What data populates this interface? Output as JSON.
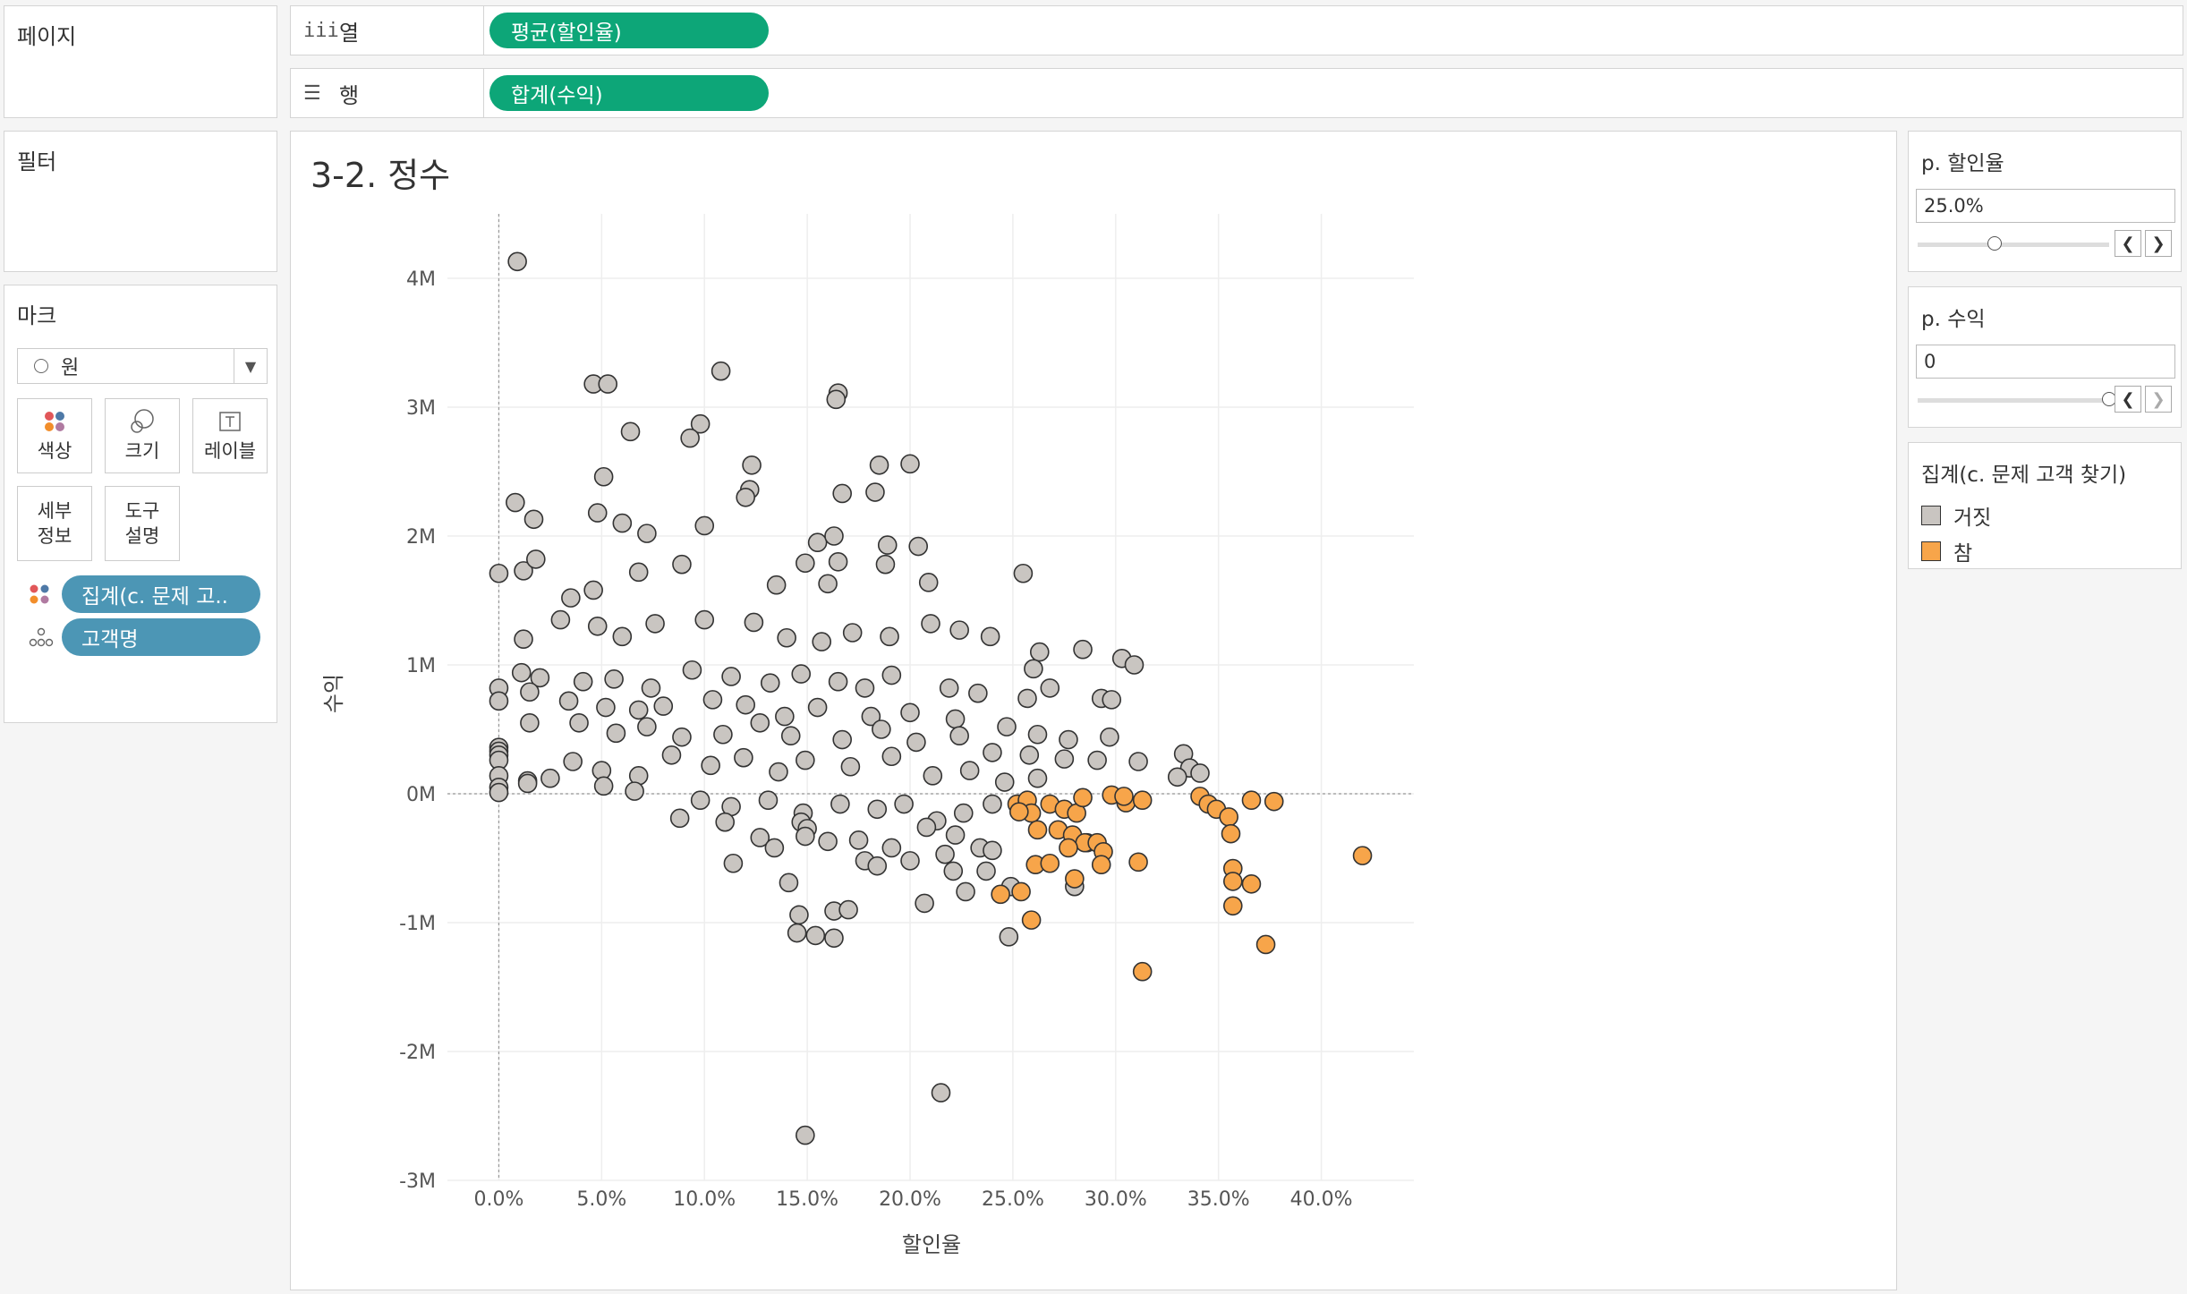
{
  "pages": {
    "title": "페이지"
  },
  "filters": {
    "title": "필터"
  },
  "shelves": {
    "columns": {
      "label": "열",
      "icon": "columns-icon",
      "pill": "평균(할인율)"
    },
    "rows": {
      "label": "행",
      "icon": "rows-icon",
      "pill": "합계(수익)"
    }
  },
  "marks": {
    "title": "마크",
    "type": "원",
    "buttons": {
      "color": "색상",
      "size": "크기",
      "label": "레이블",
      "detail_1": "세부",
      "detail_2": "정보",
      "tooltip_1": "도구",
      "tooltip_2": "설명"
    },
    "pills": [
      {
        "label": "집계(c. 문제 고..",
        "icon": "color-dots-icon"
      },
      {
        "label": "고객명",
        "icon": "detail-dots-icon"
      }
    ]
  },
  "params": [
    {
      "title": "p. 할인율",
      "value": "25.0%",
      "level": 0.4
    },
    {
      "title": "p. 수익",
      "value": "0",
      "level": 1.0
    }
  ],
  "legend": {
    "title": "집계(c. 문제 고객 찾기)",
    "items": [
      {
        "label": "거짓",
        "color": "#c9c5c1"
      },
      {
        "label": "참",
        "color": "#f7a54a"
      }
    ]
  },
  "chart_data": {
    "type": "scatter",
    "title": "3-2. 정수",
    "xlabel": "할인율",
    "ylabel": "수익",
    "xlim": [
      -0.025,
      0.445
    ],
    "ylim": [
      -3.0,
      4.5
    ],
    "xticks": [
      "0.0%",
      "5.0%",
      "10.0%",
      "15.0%",
      "20.0%",
      "25.0%",
      "30.0%",
      "35.0%",
      "40.0%"
    ],
    "xtick_values": [
      0,
      0.05,
      0.1,
      0.15,
      0.2,
      0.25,
      0.3,
      0.35,
      0.4
    ],
    "yticks": [
      "4M",
      "3M",
      "2M",
      "1M",
      "0M",
      "-1M",
      "-2M",
      "-3M"
    ],
    "ytick_values": [
      4,
      3,
      2,
      1,
      0,
      -1,
      -2,
      -3
    ],
    "grid": true,
    "reference_lines": {
      "x": 0,
      "y": 0
    },
    "series": [
      {
        "name": "거짓",
        "color": "#c9c5c1",
        "points": [
          [
            0.009,
            4.13
          ],
          [
            0.108,
            3.28
          ],
          [
            0.046,
            3.18
          ],
          [
            0.053,
            3.18
          ],
          [
            0.165,
            3.11
          ],
          [
            0.164,
            3.06
          ],
          [
            0.098,
            2.87
          ],
          [
            0.093,
            2.76
          ],
          [
            0.064,
            2.81
          ],
          [
            0.2,
            2.56
          ],
          [
            0.123,
            2.55
          ],
          [
            0.185,
            2.55
          ],
          [
            0.051,
            2.46
          ],
          [
            0.122,
            2.36
          ],
          [
            0.12,
            2.3
          ],
          [
            0.167,
            2.33
          ],
          [
            0.183,
            2.34
          ],
          [
            0.008,
            2.26
          ],
          [
            0.017,
            2.13
          ],
          [
            0.048,
            2.18
          ],
          [
            0.06,
            2.1
          ],
          [
            0.072,
            2.02
          ],
          [
            0.1,
            2.08
          ],
          [
            0.155,
            1.95
          ],
          [
            0.163,
            2.0
          ],
          [
            0.189,
            1.93
          ],
          [
            0.204,
            1.92
          ],
          [
            0.165,
            1.8
          ],
          [
            0.188,
            1.78
          ],
          [
            0.255,
            1.71
          ],
          [
            0.0,
            1.71
          ],
          [
            0.012,
            1.73
          ],
          [
            0.018,
            1.82
          ],
          [
            0.035,
            1.52
          ],
          [
            0.046,
            1.58
          ],
          [
            0.068,
            1.72
          ],
          [
            0.089,
            1.78
          ],
          [
            0.135,
            1.62
          ],
          [
            0.149,
            1.79
          ],
          [
            0.16,
            1.63
          ],
          [
            0.209,
            1.64
          ],
          [
            0.012,
            1.2
          ],
          [
            0.03,
            1.35
          ],
          [
            0.048,
            1.3
          ],
          [
            0.06,
            1.22
          ],
          [
            0.076,
            1.32
          ],
          [
            0.1,
            1.35
          ],
          [
            0.124,
            1.33
          ],
          [
            0.14,
            1.21
          ],
          [
            0.157,
            1.18
          ],
          [
            0.172,
            1.25
          ],
          [
            0.19,
            1.22
          ],
          [
            0.21,
            1.32
          ],
          [
            0.224,
            1.27
          ],
          [
            0.239,
            1.22
          ],
          [
            0.263,
            1.1
          ],
          [
            0.284,
            1.12
          ],
          [
            0.303,
            1.05
          ],
          [
            0.309,
            1.0
          ],
          [
            0.26,
            0.97
          ],
          [
            0.011,
            0.94
          ],
          [
            0.02,
            0.9
          ],
          [
            0.041,
            0.87
          ],
          [
            0.056,
            0.89
          ],
          [
            0.074,
            0.82
          ],
          [
            0.094,
            0.96
          ],
          [
            0.113,
            0.91
          ],
          [
            0.132,
            0.86
          ],
          [
            0.147,
            0.93
          ],
          [
            0.165,
            0.87
          ],
          [
            0.178,
            0.82
          ],
          [
            0.191,
            0.92
          ],
          [
            0.219,
            0.82
          ],
          [
            0.233,
            0.78
          ],
          [
            0.257,
            0.74
          ],
          [
            0.268,
            0.82
          ],
          [
            0.293,
            0.74
          ],
          [
            0.298,
            0.73
          ],
          [
            0.0,
            0.82
          ],
          [
            0.0,
            0.72
          ],
          [
            0.015,
            0.79
          ],
          [
            0.034,
            0.72
          ],
          [
            0.052,
            0.67
          ],
          [
            0.068,
            0.65
          ],
          [
            0.08,
            0.68
          ],
          [
            0.104,
            0.73
          ],
          [
            0.12,
            0.69
          ],
          [
            0.139,
            0.6
          ],
          [
            0.155,
            0.67
          ],
          [
            0.181,
            0.6
          ],
          [
            0.2,
            0.63
          ],
          [
            0.222,
            0.58
          ],
          [
            0.247,
            0.52
          ],
          [
            0.262,
            0.46
          ],
          [
            0.277,
            0.42
          ],
          [
            0.297,
            0.44
          ],
          [
            0.015,
            0.55
          ],
          [
            0.039,
            0.55
          ],
          [
            0.057,
            0.47
          ],
          [
            0.072,
            0.52
          ],
          [
            0.089,
            0.44
          ],
          [
            0.109,
            0.46
          ],
          [
            0.127,
            0.55
          ],
          [
            0.142,
            0.45
          ],
          [
            0.167,
            0.42
          ],
          [
            0.186,
            0.5
          ],
          [
            0.203,
            0.4
          ],
          [
            0.224,
            0.45
          ],
          [
            0.24,
            0.32
          ],
          [
            0.258,
            0.3
          ],
          [
            0.275,
            0.27
          ],
          [
            0.291,
            0.26
          ],
          [
            0.311,
            0.25
          ],
          [
            0.333,
            0.31
          ],
          [
            0.336,
            0.2
          ],
          [
            0.341,
            0.16
          ],
          [
            0.33,
            0.13
          ],
          [
            0.0,
            0.36
          ],
          [
            0.0,
            0.33
          ],
          [
            0.0,
            0.3
          ],
          [
            0.0,
            0.26
          ],
          [
            0.0,
            0.14
          ],
          [
            0.0,
            0.05
          ],
          [
            0.0,
            0.01
          ],
          [
            0.014,
            0.1
          ],
          [
            0.014,
            0.08
          ],
          [
            0.025,
            0.12
          ],
          [
            0.036,
            0.25
          ],
          [
            0.05,
            0.18
          ],
          [
            0.068,
            0.14
          ],
          [
            0.084,
            0.3
          ],
          [
            0.103,
            0.22
          ],
          [
            0.119,
            0.28
          ],
          [
            0.136,
            0.17
          ],
          [
            0.149,
            0.26
          ],
          [
            0.171,
            0.21
          ],
          [
            0.191,
            0.29
          ],
          [
            0.211,
            0.14
          ],
          [
            0.229,
            0.18
          ],
          [
            0.246,
            0.09
          ],
          [
            0.262,
            0.12
          ],
          [
            0.051,
            0.06
          ],
          [
            0.066,
            0.02
          ],
          [
            0.098,
            -0.05
          ],
          [
            0.113,
            -0.1
          ],
          [
            0.131,
            -0.05
          ],
          [
            0.148,
            -0.15
          ],
          [
            0.166,
            -0.08
          ],
          [
            0.184,
            -0.12
          ],
          [
            0.197,
            -0.08
          ],
          [
            0.213,
            -0.21
          ],
          [
            0.226,
            -0.15
          ],
          [
            0.24,
            -0.08
          ],
          [
            0.088,
            -0.19
          ],
          [
            0.11,
            -0.22
          ],
          [
            0.127,
            -0.34
          ],
          [
            0.147,
            -0.22
          ],
          [
            0.16,
            -0.37
          ],
          [
            0.175,
            -0.36
          ],
          [
            0.191,
            -0.42
          ],
          [
            0.208,
            -0.26
          ],
          [
            0.222,
            -0.32
          ],
          [
            0.234,
            -0.42
          ],
          [
            0.24,
            -0.44
          ],
          [
            0.114,
            -0.54
          ],
          [
            0.134,
            -0.42
          ],
          [
            0.15,
            -0.27
          ],
          [
            0.149,
            -0.33
          ],
          [
            0.178,
            -0.52
          ],
          [
            0.184,
            -0.56
          ],
          [
            0.2,
            -0.52
          ],
          [
            0.217,
            -0.47
          ],
          [
            0.221,
            -0.6
          ],
          [
            0.237,
            -0.6
          ],
          [
            0.146,
            -0.94
          ],
          [
            0.141,
            -0.69
          ],
          [
            0.145,
            -1.08
          ],
          [
            0.154,
            -1.1
          ],
          [
            0.163,
            -1.12
          ],
          [
            0.163,
            -0.91
          ],
          [
            0.17,
            -0.9
          ],
          [
            0.207,
            -0.85
          ],
          [
            0.227,
            -0.76
          ],
          [
            0.249,
            -0.72
          ],
          [
            0.28,
            -0.72
          ],
          [
            0.248,
            -1.11
          ],
          [
            0.215,
            -2.32
          ],
          [
            0.149,
            -2.65
          ]
        ]
      },
      {
        "name": "참",
        "color": "#f7a54a",
        "points": [
          [
            0.252,
            -0.08
          ],
          [
            0.257,
            -0.05
          ],
          [
            0.259,
            -0.15
          ],
          [
            0.268,
            -0.08
          ],
          [
            0.275,
            -0.12
          ],
          [
            0.281,
            -0.15
          ],
          [
            0.284,
            -0.03
          ],
          [
            0.286,
            -0.38
          ],
          [
            0.298,
            -0.01
          ],
          [
            0.305,
            -0.07
          ],
          [
            0.304,
            -0.02
          ],
          [
            0.313,
            -0.05
          ],
          [
            0.262,
            -0.28
          ],
          [
            0.272,
            -0.28
          ],
          [
            0.279,
            -0.32
          ],
          [
            0.285,
            -0.38
          ],
          [
            0.291,
            -0.38
          ],
          [
            0.294,
            -0.45
          ],
          [
            0.261,
            -0.55
          ],
          [
            0.268,
            -0.54
          ],
          [
            0.277,
            -0.42
          ],
          [
            0.28,
            -0.66
          ],
          [
            0.293,
            -0.55
          ],
          [
            0.311,
            -0.53
          ],
          [
            0.341,
            -0.02
          ],
          [
            0.345,
            -0.08
          ],
          [
            0.349,
            -0.12
          ],
          [
            0.355,
            -0.18
          ],
          [
            0.356,
            -0.31
          ],
          [
            0.366,
            -0.05
          ],
          [
            0.377,
            -0.06
          ],
          [
            0.357,
            -0.58
          ],
          [
            0.357,
            -0.68
          ],
          [
            0.366,
            -0.7
          ],
          [
            0.357,
            -0.87
          ],
          [
            0.373,
            -1.17
          ],
          [
            0.42,
            -0.48
          ],
          [
            0.254,
            -0.76
          ],
          [
            0.259,
            -0.98
          ],
          [
            0.244,
            -0.78
          ],
          [
            0.313,
            -1.38
          ],
          [
            0.253,
            -0.14
          ]
        ]
      }
    ]
  }
}
